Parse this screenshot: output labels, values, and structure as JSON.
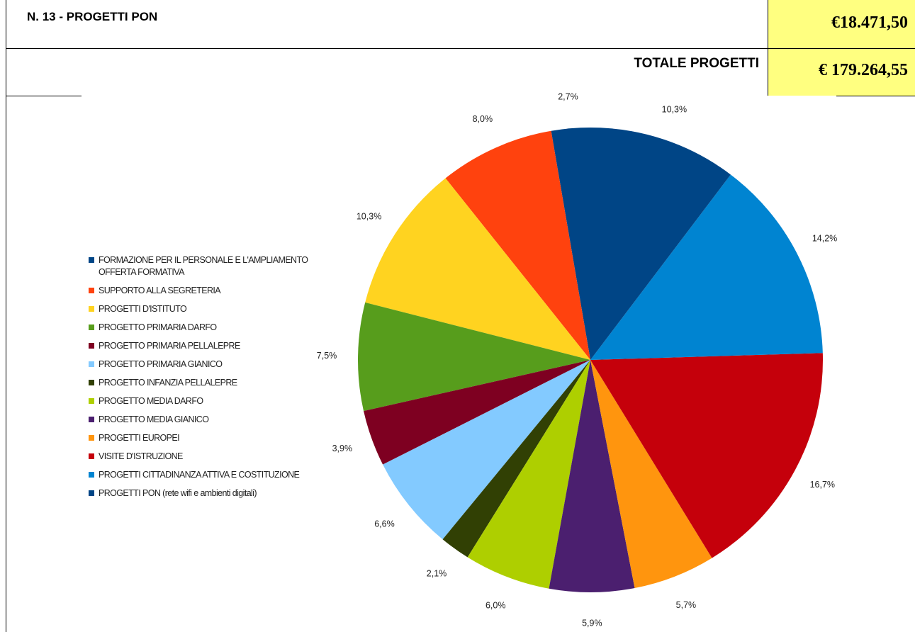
{
  "table": {
    "title": "N. 13  -  PROGETTI  PON",
    "amount": "€18.471,50",
    "total_label": "TOTALE PROGETTI",
    "total_amount": "€ 179.264,55"
  },
  "chart_data": {
    "type": "pie",
    "categories": [
      "FORMAZIONE PER IL PERSONALE E L'AMPLIAMENTO OFFERTA FORMATIVA",
      "SUPPORTO ALLA SEGRETERIA",
      "PROGETTI  D'ISTITUTO",
      "PROGETTO PRIMARIA  DARFO",
      "PROGETTO PRIMARIA PELLALEPRE",
      "PROGETTO PRIMARIA GIANICO",
      "PROGETTO INFANZIA PELLALEPRE",
      "PROGETTO MEDIA DARFO",
      "PROGETTO MEDIA GIANICO",
      "PROGETTI EUROPEI",
      "VISITE D'ISTRUZIONE",
      "PROGETTI CITTADINANZA ATTIVA E COSTITUZIONE",
      "PROGETTI  PON  (rete wifi e ambienti digitali)"
    ],
    "values": [
      2.7,
      8.0,
      10.3,
      7.5,
      3.9,
      6.6,
      2.1,
      6.0,
      5.9,
      5.7,
      16.7,
      14.2,
      10.3
    ],
    "value_labels": [
      "2,7%",
      "8,0%",
      "10,3%",
      "7,5%",
      "3,9%",
      "6,6%",
      "2,1%",
      "6,0%",
      "5,9%",
      "5,7%",
      "16,7%",
      "14,2%",
      "10,3%"
    ],
    "colors": [
      "#004586",
      "#ff420e",
      "#ffd320",
      "#579d1c",
      "#7e0021",
      "#83caff",
      "#314004",
      "#aecf00",
      "#4b1f6f",
      "#ff950e",
      "#c5000b",
      "#0084d1",
      "#004586"
    ],
    "legend": "left"
  }
}
